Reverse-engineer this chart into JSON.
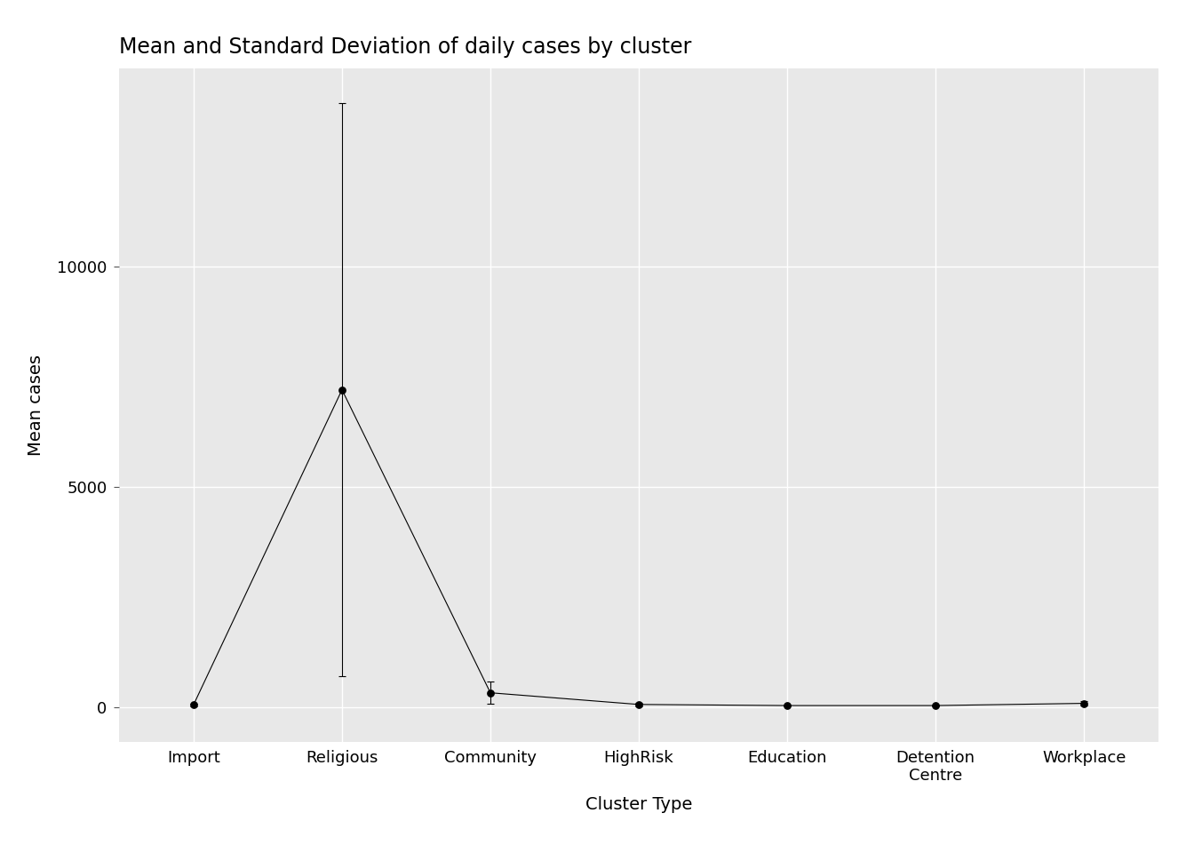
{
  "title": "Mean and Standard Deviation of daily cases by cluster",
  "xlabel": "Cluster Type",
  "ylabel": "Mean cases",
  "categories": [
    "Import",
    "Religious",
    "Community",
    "HighRisk",
    "Education",
    "Detention\nCentre",
    "Workplace"
  ],
  "means": [
    50,
    7200,
    320,
    55,
    30,
    30,
    80
  ],
  "stds": [
    30,
    6500,
    250,
    40,
    20,
    20,
    50
  ],
  "panel_background_color": "#e8e8e8",
  "figure_background_color": "#ffffff",
  "line_color": "black",
  "point_color": "black",
  "point_size": 40,
  "title_fontsize": 17,
  "label_fontsize": 14,
  "tick_fontsize": 13,
  "ylim": [
    -800,
    14500
  ],
  "yticks": [
    0,
    5000,
    10000
  ],
  "grid_color": "white"
}
